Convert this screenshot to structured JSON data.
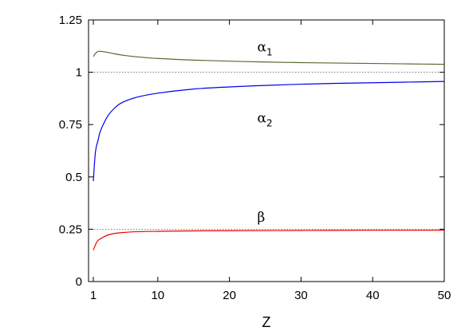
{
  "chart_data": {
    "type": "line",
    "xlabel": "Z",
    "ylabel": "",
    "xlim": [
      0,
      50
    ],
    "ylim": [
      0,
      1.25
    ],
    "x_ticks": [
      1,
      10,
      20,
      30,
      40,
      50
    ],
    "x_tick_labels": [
      "1",
      "10",
      "20",
      "30",
      "40",
      "50"
    ],
    "y_ticks": [
      0,
      0.25,
      0.5,
      0.75,
      1,
      1.25
    ],
    "y_tick_labels": [
      "0",
      "0.25",
      "0.5",
      "0.75",
      "1",
      "1.25"
    ],
    "reference_lines": [
      1.0,
      0.25
    ],
    "grid": false,
    "legend": "none",
    "series": [
      {
        "name": "α1",
        "label_main": "α",
        "label_sub": "1",
        "color": "#556b2f",
        "x": [
          1,
          1.5,
          2,
          3,
          4,
          5,
          7,
          10,
          15,
          20,
          25,
          30,
          35,
          40,
          45,
          50
        ],
        "y": [
          1.075,
          1.097,
          1.1,
          1.095,
          1.088,
          1.082,
          1.074,
          1.066,
          1.058,
          1.053,
          1.049,
          1.046,
          1.044,
          1.042,
          1.04,
          1.038
        ]
      },
      {
        "name": "α2",
        "label_main": "α",
        "label_sub": "2",
        "color": "#0000ee",
        "x": [
          1,
          1.3,
          1.7,
          2,
          3,
          4,
          5,
          7,
          10,
          15,
          20,
          25,
          30,
          35,
          40,
          45,
          50
        ],
        "y": [
          0.48,
          0.62,
          0.68,
          0.72,
          0.79,
          0.83,
          0.855,
          0.88,
          0.9,
          0.92,
          0.93,
          0.937,
          0.943,
          0.947,
          0.95,
          0.953,
          0.956
        ]
      },
      {
        "name": "β",
        "label_main": "β",
        "label_sub": "",
        "color": "#ee0000",
        "x": [
          1,
          1.5,
          2,
          3,
          4,
          5,
          7,
          10,
          15,
          20,
          30,
          40,
          50
        ],
        "y": [
          0.15,
          0.19,
          0.205,
          0.222,
          0.23,
          0.234,
          0.238,
          0.24,
          0.242,
          0.243,
          0.244,
          0.245,
          0.245
        ]
      }
    ]
  }
}
